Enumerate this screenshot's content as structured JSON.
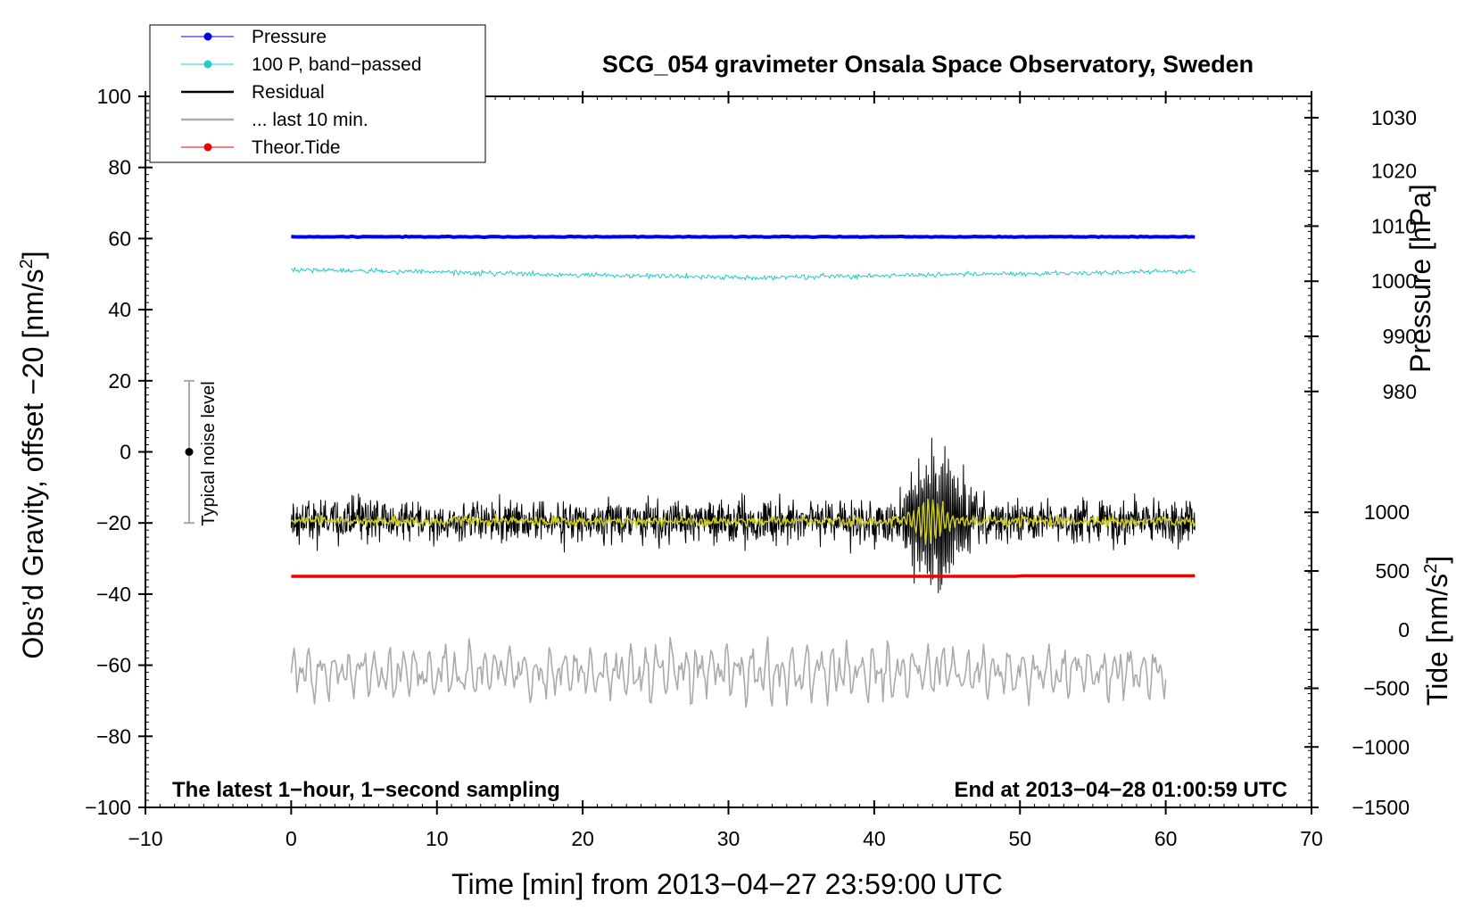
{
  "chart_data": {
    "type": "line",
    "title": "SCG_054 gravimeter Onsala Space Observatory, Sweden",
    "xlabel": "Time [min] from 2013−04−27 23:59:00 UTC",
    "ylabel_left": "Obs’d Gravity, offset −20 [nm/s",
    "ylabel_left_sup": "2",
    "ylabel_left_close": "]",
    "ylabel_right_pressure": "Pressure [hPa]",
    "ylabel_right_tide": "Tide [nm/s",
    "ylabel_right_tide_sup": "2",
    "ylabel_right_tide_close": "]",
    "xlim": [
      -10,
      70
    ],
    "ylim_left": [
      -100,
      100
    ],
    "x_ticks": [
      -10,
      0,
      10,
      20,
      30,
      40,
      50,
      60,
      70
    ],
    "x_tick_labels": [
      "−10",
      "0",
      "10",
      "20",
      "30",
      "40",
      "50",
      "60",
      "70"
    ],
    "y_ticks": [
      100,
      80,
      60,
      40,
      20,
      0,
      -20,
      -40,
      -60,
      -80,
      -100
    ],
    "y_tick_labels": [
      "100",
      "80",
      "60",
      "40",
      "20",
      "0",
      "−20",
      "−40",
      "−60",
      "−80",
      "−100"
    ],
    "pressure_ticks": [
      1030,
      1020,
      1010,
      1000,
      990,
      980
    ],
    "pressure_tick_labels": [
      "1030",
      "1020",
      "1010",
      "1000",
      "990",
      "980"
    ],
    "pressure_tick_left_values": [
      94,
      79,
      63.5,
      48,
      32.5,
      17
    ],
    "tide_ticks": [
      1000,
      500,
      0,
      -500,
      -1000,
      -1500
    ],
    "tide_tick_labels": [
      "1000",
      "500",
      "0",
      "−500",
      "−1000",
      "−1500"
    ],
    "tide_tick_left_values": [
      -17,
      -33.5,
      -50,
      -66.5,
      -83,
      -100
    ],
    "legend": [
      {
        "label": "Pressure",
        "color": "#0000ee",
        "marker": true
      },
      {
        "label": "100 P, band−passed",
        "color": "#22cccc",
        "marker": true
      },
      {
        "label": "Residual",
        "color": "#000000",
        "marker": false
      },
      {
        "label": "... last 10 min.",
        "color": "#aaaaaa",
        "marker": false
      },
      {
        "label": "Theor.Tide",
        "color": "#ee0000",
        "marker": true
      }
    ],
    "series": [
      {
        "name": "Pressure",
        "color": "#0000ee",
        "x_range": [
          0,
          62
        ],
        "level": 60.5,
        "noise": 0.3
      },
      {
        "name": "100 P, band−passed",
        "color": "#22cccc",
        "x_range": [
          0,
          62
        ],
        "start": 51.3,
        "mid": 49.0,
        "end": 50.8,
        "noise": 0.6
      },
      {
        "name": "Residual",
        "color": "#000000",
        "x_range": [
          0,
          62
        ],
        "level": -19.5,
        "noise": 5,
        "event_center_min": 44.5,
        "event_amp": 22
      },
      {
        "name": "Residual (smoothed)",
        "color": "#cccc22",
        "x_range": [
          0,
          62
        ],
        "level": -19.5,
        "noise": 1.2
      },
      {
        "name": "... last 10 min.",
        "color": "#aaaaaa",
        "x_range": [
          0,
          60
        ],
        "level": -62,
        "amp": 7
      },
      {
        "name": "Theor.Tide",
        "color": "#ee0000",
        "x_range": [
          0,
          62
        ],
        "level": -35.0
      }
    ],
    "noise_bar": {
      "x": -7,
      "center": 0,
      "low": -20,
      "high": 20,
      "label": "Typical noise level"
    },
    "annotation_left": "The latest 1−hour, 1−second sampling",
    "annotation_right": "End at 2013−04−28 01:00:59 UTC"
  }
}
